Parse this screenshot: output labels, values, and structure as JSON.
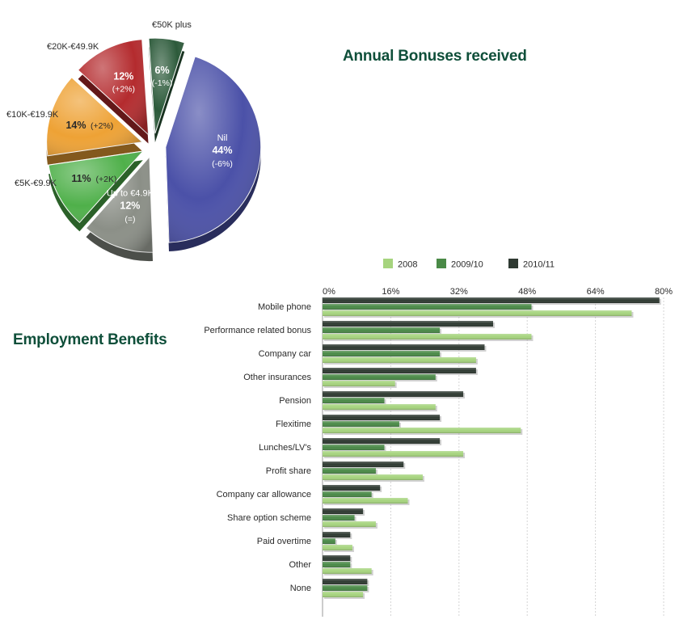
{
  "chart_data": [
    {
      "type": "pie",
      "title": "Annual Bonuses received",
      "slices": [
        {
          "label": "Nil",
          "value": 44,
          "change": "(-6%)",
          "color": "#4b51a8"
        },
        {
          "label": "Up to €4.9K",
          "value": 12,
          "change": "(=)",
          "color": "#8b8f87"
        },
        {
          "label": "€5K-€9.9K",
          "value": 11,
          "change": "(+2K)",
          "color": "#4fb04a"
        },
        {
          "label": "€10K-€19.9K",
          "value": 14,
          "change": "(+2%)",
          "color": "#eea235"
        },
        {
          "label": "€20K-€49.9K",
          "value": 12,
          "change": "(+2%)",
          "color": "#b42b2e"
        },
        {
          "label": "€50K plus",
          "value": 6,
          "change": "(-1%)",
          "color": "#2c5a3a"
        }
      ]
    },
    {
      "type": "bar",
      "orientation": "horizontal",
      "title": "Employment Benefits",
      "categories": [
        "Mobile phone",
        "Performance related bonus",
        "Company car",
        "Other insurances",
        "Pension",
        "Flexitime",
        "Lunches/LV's",
        "Profit share",
        "Company car allowance",
        "Share option scheme",
        "Paid overtime",
        "Other",
        "None"
      ],
      "series": [
        {
          "name": "2010/11",
          "color": "#2f3a32",
          "values": [
            79,
            40,
            38,
            36,
            33,
            27.5,
            27.5,
            19,
            13.5,
            9.5,
            6.5,
            6.5,
            10.5
          ]
        },
        {
          "name": "2009/10",
          "color": "#4a8a47",
          "values": [
            49,
            27.5,
            27.5,
            26.5,
            14.5,
            18,
            14.5,
            12.5,
            11.5,
            7.5,
            3,
            6.5,
            10.5
          ]
        },
        {
          "name": "2008",
          "color": "#a6d47e",
          "values": [
            72.5,
            49,
            36,
            17,
            26.5,
            46.5,
            33,
            23.5,
            20,
            12.5,
            7,
            11.5,
            9.5
          ]
        }
      ],
      "legend_order": [
        "2008",
        "2009/10",
        "2010/11"
      ],
      "legend_position": "top",
      "xlim": [
        0,
        80
      ],
      "xticks": [
        "0%",
        "16%",
        "32%",
        "48%",
        "64%",
        "80%"
      ],
      "grid": true
    }
  ]
}
